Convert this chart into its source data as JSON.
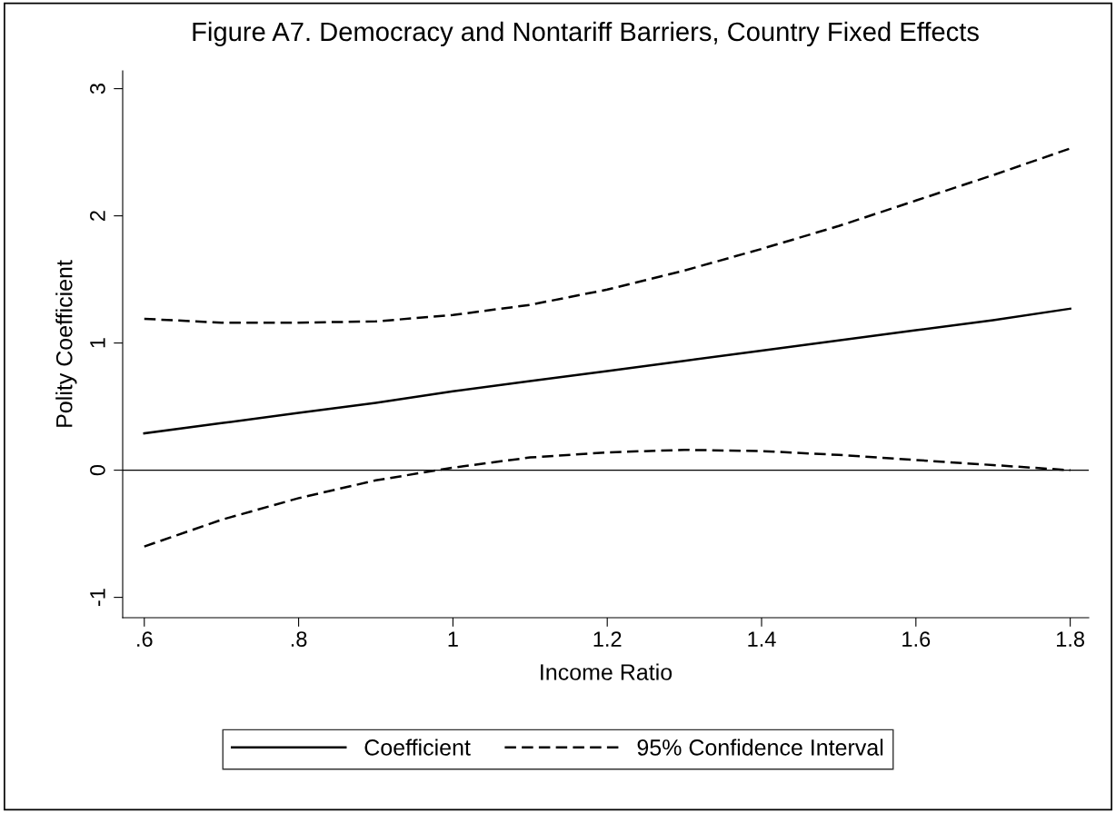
{
  "chart_data": {
    "type": "line",
    "title": "Figure A7. Democracy and Nontariff Barriers, Country Fixed Effects",
    "xlabel": "Income Ratio",
    "ylabel": "Polity Coefficient",
    "x": [
      0.6,
      0.7,
      0.8,
      0.9,
      1.0,
      1.1,
      1.2,
      1.3,
      1.4,
      1.5,
      1.6,
      1.7,
      1.8
    ],
    "series": [
      {
        "name": "Coefficient",
        "color": "#000000",
        "line_style": "solid",
        "values": [
          0.29,
          0.37,
          0.45,
          0.53,
          0.62,
          0.7,
          0.78,
          0.86,
          0.94,
          1.02,
          1.1,
          1.18,
          1.27
        ]
      },
      {
        "name": "95% Confidence Interval",
        "color": "#000000",
        "line_style": "dashed",
        "values": [
          1.19,
          1.16,
          1.16,
          1.17,
          1.22,
          1.3,
          1.42,
          1.57,
          1.74,
          1.92,
          2.12,
          2.32,
          2.53
        ]
      },
      {
        "color": "#000000",
        "line_style": "dashed",
        "values": [
          -0.6,
          -0.39,
          -0.22,
          -0.08,
          0.02,
          0.1,
          0.14,
          0.16,
          0.15,
          0.12,
          0.08,
          0.04,
          0.0
        ]
      }
    ],
    "xlim": [
      0.572,
      1.824
    ],
    "ylim": [
      -1.16,
      3.14
    ],
    "xticks": [
      {
        "value": 0.6,
        "label": ".6"
      },
      {
        "value": 0.8,
        "label": ".8"
      },
      1,
      1.2,
      1.4,
      1.6,
      1.8
    ],
    "yticks": [
      -1,
      0,
      1,
      2,
      3
    ],
    "ref_lines": [
      {
        "axis": "y",
        "value": 0,
        "color": "#000000",
        "line_style": "solid"
      }
    ],
    "grid": false,
    "legend": "bottom",
    "marker": "none"
  }
}
